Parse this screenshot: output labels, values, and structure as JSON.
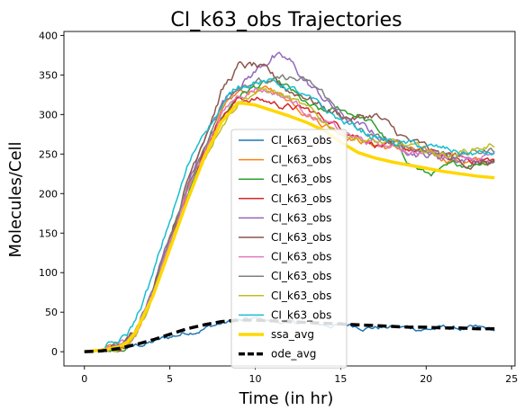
{
  "chart_data": {
    "type": "line",
    "title": "CI_k63_obs Trajectories",
    "xlabel": "Time (in hr)",
    "ylabel": "Molecules/Cell",
    "xlim": [
      -1.2,
      25.2
    ],
    "ylim": [
      -18,
      405
    ],
    "xticks": [
      0,
      5,
      10,
      15,
      20,
      25
    ],
    "yticks": [
      0,
      50,
      100,
      150,
      200,
      250,
      300,
      350,
      400
    ],
    "grid": false,
    "legend_position": "center",
    "series": [
      {
        "name": "CI_k63_obs",
        "color": "#1f77b4",
        "width": 1.5,
        "dash": "",
        "noise": 3,
        "x": [
          0,
          1,
          2,
          3,
          4,
          5,
          6,
          7,
          8,
          9,
          10,
          11,
          12,
          13,
          14,
          15,
          16,
          17,
          18,
          19,
          20,
          21,
          22,
          23,
          24
        ],
        "y": [
          0,
          1,
          3,
          7,
          12,
          18,
          25,
          31,
          36,
          38,
          40,
          39,
          37,
          35,
          34,
          34,
          33,
          32,
          31,
          30,
          29,
          30,
          29,
          28,
          26
        ]
      },
      {
        "name": "CI_k63_obs",
        "color": "#ff7f0e",
        "width": 1.5,
        "dash": "",
        "noise": 4,
        "x": [
          0,
          1,
          2,
          2.5,
          3,
          4,
          5,
          6,
          7,
          8,
          9,
          10,
          11,
          12,
          13,
          14,
          15,
          16,
          17,
          18,
          19,
          20,
          21,
          22,
          23,
          24
        ],
        "y": [
          0,
          2,
          6,
          12,
          25,
          75,
          140,
          200,
          255,
          300,
          325,
          330,
          330,
          320,
          305,
          290,
          280,
          270,
          262,
          258,
          255,
          250,
          245,
          242,
          240,
          238
        ]
      },
      {
        "name": "CI_k63_obs",
        "color": "#2ca02c",
        "width": 1.5,
        "dash": "",
        "noise": 4,
        "x": [
          0,
          1,
          2,
          2.5,
          3,
          4,
          5,
          6,
          7,
          8,
          9,
          10,
          11,
          12,
          13,
          14,
          15,
          16,
          17,
          18,
          19,
          20,
          21,
          22,
          23,
          24
        ],
        "y": [
          0,
          2,
          6,
          12,
          24,
          70,
          135,
          195,
          250,
          295,
          325,
          335,
          340,
          330,
          310,
          300,
          305,
          300,
          285,
          260,
          240,
          225,
          228,
          235,
          240,
          245
        ]
      },
      {
        "name": "CI_k63_obs",
        "color": "#d62728",
        "width": 1.5,
        "dash": "",
        "noise": 4,
        "x": [
          0,
          1,
          2,
          2.5,
          3,
          4,
          5,
          6,
          7,
          8,
          9,
          10,
          11,
          12,
          13,
          14,
          15,
          16,
          17,
          18,
          19,
          20,
          21,
          22,
          23,
          24
        ],
        "y": [
          0,
          2,
          6,
          12,
          25,
          72,
          140,
          200,
          255,
          300,
          320,
          320,
          315,
          310,
          305,
          295,
          285,
          275,
          265,
          258,
          255,
          250,
          248,
          245,
          243,
          242
        ]
      },
      {
        "name": "CI_k63_obs",
        "color": "#9467bd",
        "width": 1.5,
        "dash": "",
        "noise": 5,
        "x": [
          0,
          1,
          2,
          2.5,
          3,
          4,
          5,
          6,
          7,
          8,
          9,
          10,
          11,
          12,
          13,
          14,
          15,
          16,
          17,
          18,
          19,
          20,
          21,
          22,
          23,
          24
        ],
        "y": [
          0,
          2,
          6,
          12,
          26,
          78,
          145,
          205,
          265,
          315,
          340,
          355,
          375,
          365,
          340,
          320,
          300,
          285,
          275,
          265,
          258,
          250,
          247,
          245,
          243,
          240
        ]
      },
      {
        "name": "CI_k63_obs",
        "color": "#8c564b",
        "width": 1.5,
        "dash": "",
        "noise": 5,
        "x": [
          0,
          1,
          2,
          2.5,
          3,
          4,
          5,
          6,
          7,
          8,
          9,
          10,
          11,
          12,
          13,
          14,
          15,
          16,
          17,
          18,
          19,
          20,
          21,
          22,
          23,
          24
        ],
        "y": [
          0,
          2,
          6,
          12,
          27,
          80,
          150,
          215,
          275,
          330,
          360,
          360,
          345,
          330,
          325,
          310,
          300,
          295,
          300,
          280,
          265,
          255,
          245,
          240,
          238,
          240
        ]
      },
      {
        "name": "CI_k63_obs",
        "color": "#e377c2",
        "width": 1.5,
        "dash": "",
        "noise": 4,
        "x": [
          0,
          1,
          2,
          2.5,
          3,
          4,
          5,
          6,
          7,
          8,
          9,
          10,
          11,
          12,
          13,
          14,
          15,
          16,
          17,
          18,
          19,
          20,
          21,
          22,
          23,
          24
        ],
        "y": [
          0,
          2,
          6,
          12,
          25,
          74,
          140,
          200,
          255,
          300,
          325,
          335,
          330,
          320,
          305,
          290,
          278,
          268,
          262,
          258,
          255,
          252,
          250,
          250,
          248,
          248
        ]
      },
      {
        "name": "CI_k63_obs",
        "color": "#7f7f7f",
        "width": 1.5,
        "dash": "",
        "noise": 4,
        "x": [
          0,
          1,
          2,
          2.5,
          3,
          4,
          5,
          6,
          7,
          8,
          9,
          10,
          11,
          12,
          13,
          14,
          15,
          16,
          17,
          18,
          19,
          20,
          21,
          22,
          23,
          24
        ],
        "y": [
          0,
          2,
          6,
          12,
          26,
          76,
          145,
          205,
          260,
          310,
          340,
          345,
          340,
          345,
          340,
          325,
          300,
          280,
          270,
          262,
          258,
          255,
          252,
          250,
          252,
          255
        ]
      },
      {
        "name": "CI_k63_obs",
        "color": "#bcbd22",
        "width": 1.5,
        "dash": "",
        "noise": 4,
        "x": [
          0,
          1,
          2,
          2.5,
          3,
          4,
          5,
          6,
          7,
          8,
          9,
          10,
          11,
          12,
          13,
          14,
          15,
          16,
          17,
          18,
          19,
          20,
          21,
          22,
          23,
          24
        ],
        "y": [
          0,
          2,
          5,
          10,
          20,
          65,
          130,
          190,
          245,
          290,
          318,
          330,
          330,
          320,
          305,
          290,
          280,
          272,
          265,
          262,
          258,
          252,
          250,
          252,
          258,
          262
        ]
      },
      {
        "name": "CI_k63_obs",
        "color": "#17becf",
        "width": 1.5,
        "dash": "",
        "noise": 4,
        "x": [
          0,
          1,
          2,
          2.5,
          3,
          4,
          5,
          6,
          7,
          8,
          9,
          10,
          11,
          12,
          13,
          14,
          15,
          16,
          17,
          18,
          19,
          20,
          21,
          22,
          23,
          24
        ],
        "y": [
          0,
          3,
          10,
          20,
          40,
          95,
          165,
          230,
          280,
          310,
          335,
          345,
          340,
          335,
          320,
          305,
          292,
          282,
          272,
          265,
          262,
          258,
          255,
          252,
          250,
          250
        ]
      },
      {
        "name": "ssa_avg",
        "color": "#ffd700",
        "width": 3.5,
        "dash": "",
        "noise": 0,
        "x": [
          0,
          1,
          2,
          2.5,
          3,
          4,
          5,
          6,
          7,
          8,
          9,
          10,
          11,
          12,
          13,
          14,
          15,
          16,
          17,
          18,
          19,
          20,
          21,
          22,
          23,
          24
        ],
        "y": [
          0,
          2,
          6,
          12,
          25,
          70,
          130,
          190,
          245,
          290,
          315,
          312,
          305,
          298,
          290,
          280,
          265,
          252,
          245,
          240,
          236,
          232,
          228,
          225,
          222,
          220
        ]
      },
      {
        "name": "ode_avg",
        "color": "#000000",
        "width": 3.5,
        "dash": "10 5",
        "noise": 0,
        "x": [
          0,
          1,
          2,
          3,
          4,
          5,
          6,
          7,
          8,
          9,
          10,
          11,
          12,
          13,
          14,
          15,
          16,
          17,
          18,
          19,
          20,
          21,
          22,
          23,
          24
        ],
        "y": [
          0,
          1,
          4,
          9,
          15,
          22,
          29,
          34,
          38,
          40,
          40,
          39,
          38,
          37,
          36,
          35,
          34,
          33,
          32,
          31,
          31,
          30,
          30,
          29,
          29
        ]
      }
    ]
  }
}
